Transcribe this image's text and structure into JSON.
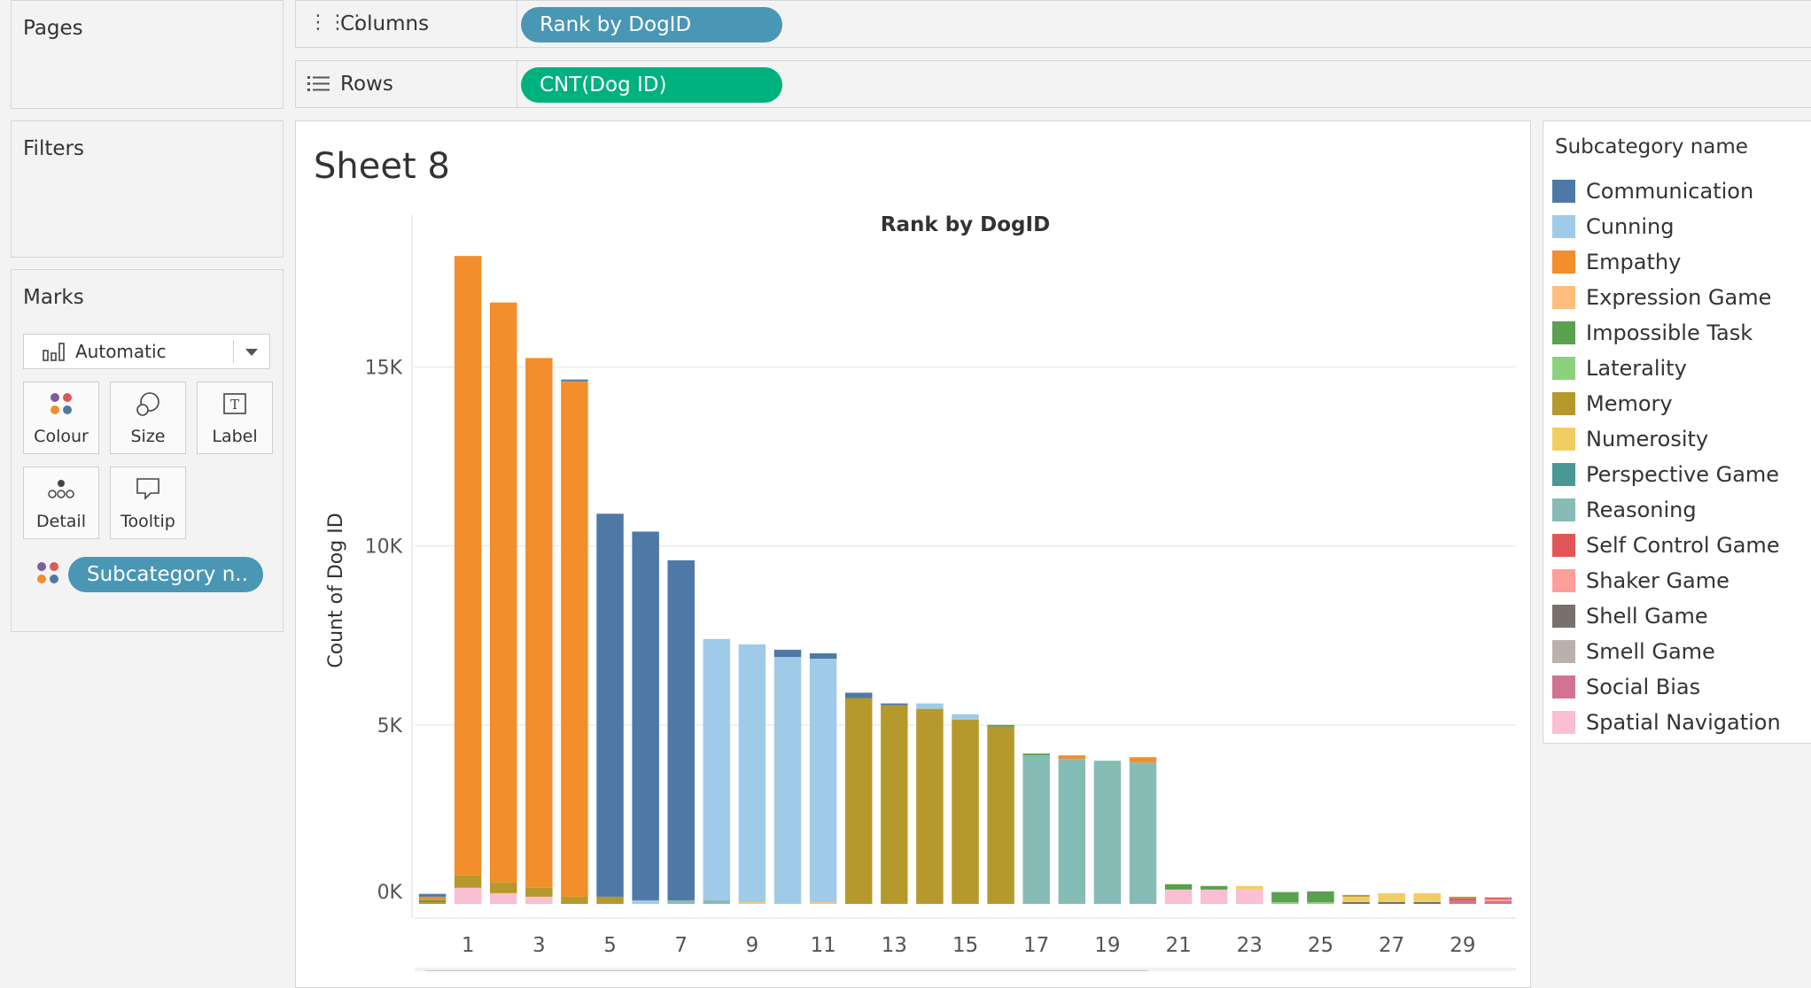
{
  "panels": {
    "pages": "Pages",
    "filters": "Filters",
    "marks": "Marks"
  },
  "shelves": {
    "columns_label": "Columns",
    "columns_pill": "Rank by DogID",
    "rows_label": "Rows",
    "rows_pill": "CNT(Dog ID)"
  },
  "marks": {
    "type": "Automatic",
    "buttons": [
      "Colour",
      "Size",
      "Label",
      "Detail",
      "Tooltip"
    ],
    "colour_pill": "Subcategory n.."
  },
  "sheet": {
    "title": "Sheet 8"
  },
  "colors": {
    "columns_pill": "#4a96b5",
    "rows_pill": "#00b180",
    "marks_pill": "#4a96b5"
  },
  "legend": {
    "title": "Subcategory name",
    "items": [
      {
        "name": "Communication",
        "color": "#4e79a7"
      },
      {
        "name": "Cunning",
        "color": "#a0cbe8"
      },
      {
        "name": "Empathy",
        "color": "#f28e2b"
      },
      {
        "name": "Expression Game",
        "color": "#ffbe7d"
      },
      {
        "name": "Impossible Task",
        "color": "#59a14f"
      },
      {
        "name": "Laterality",
        "color": "#8cd17d"
      },
      {
        "name": "Memory",
        "color": "#b6992d"
      },
      {
        "name": "Numerosity",
        "color": "#f1ce63"
      },
      {
        "name": "Perspective Game",
        "color": "#499894"
      },
      {
        "name": "Reasoning",
        "color": "#86bcb6"
      },
      {
        "name": "Self Control Game",
        "color": "#e15759"
      },
      {
        "name": "Shaker Game",
        "color": "#ff9d9a"
      },
      {
        "name": "Shell Game",
        "color": "#79706e"
      },
      {
        "name": "Smell Game",
        "color": "#bab0ac"
      },
      {
        "name": "Social Bias",
        "color": "#d37295"
      },
      {
        "name": "Spatial Navigation",
        "color": "#fabfd2"
      }
    ]
  },
  "chart_data": {
    "type": "bar",
    "title": "Rank by DogID",
    "xlabel": "",
    "ylabel": "Count of Dog ID",
    "ylim": [
      0,
      18500
    ],
    "yticks": [
      0,
      5000,
      10000,
      15000
    ],
    "ytick_labels": [
      "0K",
      "5K",
      "10K",
      "15K"
    ],
    "xtick_labels": [
      "1",
      "3",
      "5",
      "7",
      "9",
      "11",
      "13",
      "15",
      "17",
      "19",
      "21",
      "23",
      "25",
      "27",
      "29"
    ],
    "categories": [
      0,
      1,
      2,
      3,
      4,
      5,
      6,
      7,
      8,
      9,
      10,
      11,
      12,
      13,
      14,
      15,
      16,
      17,
      18,
      19,
      20,
      21,
      22,
      23,
      24,
      25,
      26,
      27,
      28,
      29,
      30
    ],
    "series": [
      {
        "name": "Communication",
        "values": [
          80,
          0,
          0,
          0,
          50,
          10700,
          10300,
          9500,
          0,
          0,
          200,
          150,
          150,
          50,
          0,
          0,
          0,
          0,
          0,
          0,
          0,
          0,
          0,
          0,
          0,
          0,
          0,
          0,
          0,
          0,
          0
        ]
      },
      {
        "name": "Cunning",
        "values": [
          0,
          0,
          0,
          0,
          0,
          0,
          100,
          0,
          7300,
          7200,
          6900,
          6800,
          0,
          0,
          150,
          150,
          0,
          0,
          0,
          0,
          0,
          0,
          0,
          0,
          0,
          0,
          0,
          0,
          0,
          0,
          0
        ]
      },
      {
        "name": "Empathy",
        "values": [
          100,
          17300,
          16200,
          14800,
          14400,
          0,
          0,
          0,
          0,
          0,
          0,
          0,
          0,
          0,
          0,
          0,
          0,
          0,
          100,
          0,
          150,
          0,
          0,
          0,
          0,
          0,
          0,
          0,
          0,
          0,
          0
        ]
      },
      {
        "name": "Expression Game",
        "values": [
          0,
          0,
          0,
          0,
          0,
          0,
          0,
          0,
          0,
          0,
          0,
          50,
          0,
          0,
          0,
          0,
          0,
          0,
          0,
          0,
          0,
          0,
          0,
          0,
          0,
          0,
          0,
          0,
          0,
          0,
          0
        ]
      },
      {
        "name": "Impossible Task",
        "values": [
          50,
          0,
          0,
          0,
          0,
          0,
          0,
          0,
          0,
          0,
          0,
          0,
          0,
          0,
          0,
          0,
          50,
          50,
          0,
          0,
          0,
          150,
          100,
          0,
          280,
          300,
          0,
          0,
          0,
          0,
          0
        ]
      },
      {
        "name": "Laterality",
        "values": [
          0,
          0,
          0,
          0,
          0,
          0,
          0,
          0,
          0,
          0,
          0,
          0,
          0,
          0,
          0,
          0,
          0,
          0,
          0,
          0,
          0,
          0,
          0,
          0,
          50,
          50,
          0,
          0,
          0,
          0,
          0
        ]
      },
      {
        "name": "Memory",
        "values": [
          50,
          350,
          300,
          250,
          200,
          200,
          0,
          0,
          0,
          0,
          0,
          0,
          5750,
          5550,
          5450,
          5150,
          4950,
          0,
          0,
          0,
          0,
          0,
          0,
          0,
          0,
          0,
          50,
          0,
          0,
          50,
          0
        ]
      },
      {
        "name": "Numerosity",
        "values": [
          0,
          0,
          0,
          0,
          0,
          0,
          0,
          0,
          0,
          50,
          0,
          0,
          0,
          0,
          0,
          0,
          0,
          0,
          0,
          0,
          0,
          0,
          0,
          100,
          0,
          0,
          150,
          250,
          250,
          0,
          0
        ]
      },
      {
        "name": "Perspective Game",
        "values": [
          0,
          0,
          0,
          0,
          0,
          0,
          0,
          0,
          0,
          0,
          0,
          0,
          0,
          0,
          0,
          0,
          0,
          0,
          0,
          0,
          0,
          0,
          0,
          0,
          0,
          0,
          0,
          0,
          0,
          0,
          0
        ]
      },
      {
        "name": "Reasoning",
        "values": [
          0,
          0,
          0,
          0,
          0,
          0,
          0,
          100,
          100,
          0,
          0,
          0,
          0,
          0,
          0,
          0,
          0,
          4150,
          4050,
          4000,
          3950,
          0,
          0,
          0,
          0,
          0,
          0,
          0,
          0,
          0,
          0
        ]
      },
      {
        "name": "Self Control Game",
        "values": [
          0,
          0,
          0,
          0,
          0,
          0,
          0,
          0,
          0,
          0,
          0,
          0,
          0,
          0,
          0,
          0,
          0,
          0,
          0,
          0,
          0,
          0,
          0,
          0,
          0,
          0,
          0,
          0,
          0,
          50,
          50
        ]
      },
      {
        "name": "Shaker Game",
        "values": [
          0,
          0,
          0,
          0,
          0,
          0,
          0,
          0,
          0,
          0,
          0,
          0,
          0,
          0,
          0,
          0,
          0,
          0,
          0,
          0,
          0,
          0,
          0,
          0,
          0,
          0,
          0,
          0,
          0,
          0,
          50
        ]
      },
      {
        "name": "Shell Game",
        "values": [
          0,
          0,
          0,
          0,
          0,
          0,
          0,
          0,
          0,
          0,
          0,
          0,
          0,
          0,
          0,
          0,
          0,
          0,
          0,
          0,
          0,
          0,
          0,
          0,
          0,
          0,
          50,
          50,
          50,
          0,
          0
        ]
      },
      {
        "name": "Smell Game",
        "values": [
          0,
          0,
          0,
          0,
          0,
          0,
          0,
          0,
          0,
          0,
          0,
          0,
          0,
          0,
          0,
          0,
          0,
          0,
          0,
          0,
          0,
          0,
          0,
          0,
          0,
          0,
          0,
          0,
          0,
          0,
          0
        ]
      },
      {
        "name": "Social Bias",
        "values": [
          0,
          0,
          0,
          0,
          0,
          0,
          0,
          0,
          0,
          0,
          0,
          0,
          0,
          0,
          0,
          0,
          0,
          0,
          0,
          0,
          0,
          0,
          0,
          0,
          0,
          0,
          0,
          0,
          0,
          100,
          80
        ]
      },
      {
        "name": "Spatial Navigation",
        "values": [
          0,
          450,
          300,
          200,
          0,
          0,
          0,
          0,
          0,
          0,
          0,
          0,
          0,
          0,
          0,
          0,
          0,
          0,
          0,
          0,
          0,
          400,
          400,
          400,
          0,
          0,
          0,
          0,
          0,
          0,
          0
        ]
      }
    ]
  }
}
